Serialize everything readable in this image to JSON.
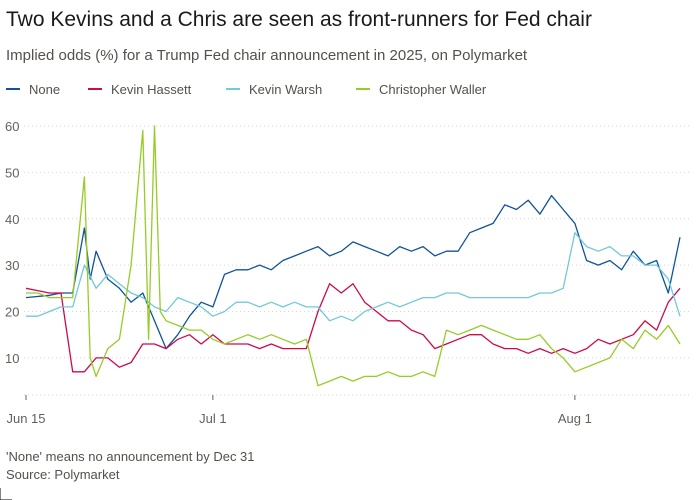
{
  "header": {
    "title": "Two Kevins and a Chris are seen as front-runners for Fed chair",
    "subtitle": "Implied odds (%) for a Trump Fed chair announcement in 2025, on Polymarket"
  },
  "footer": {
    "note": "'None' means no announcement by Dec 31",
    "source": "Source: Polymarket"
  },
  "chart_data": {
    "type": "line",
    "title": "Two Kevins and a Chris are seen as front-runners for Fed chair",
    "subtitle": "Implied odds (%) for a Trump Fed chair announcement in 2025, on Polymarket",
    "xlabel": "",
    "ylabel": "",
    "x_start": "2025-06-15",
    "x_end": "2025-08-10",
    "ylim": [
      2,
      60
    ],
    "yticks": [
      10,
      20,
      30,
      40,
      50,
      60
    ],
    "xticks": [
      {
        "date": "2025-06-15",
        "label": "Jun 15"
      },
      {
        "date": "2025-07-01",
        "label": "Jul 1"
      },
      {
        "date": "2025-08-01",
        "label": "Aug 1"
      }
    ],
    "grid": "horizontal dotted",
    "legend_position": "top",
    "series": [
      {
        "name": "None",
        "color": "#0f5499",
        "points": [
          [
            "2025-06-15",
            23
          ],
          [
            "2025-06-17",
            23.5
          ],
          [
            "2025-06-18",
            24
          ],
          [
            "2025-06-19",
            24
          ],
          [
            "2025-06-20",
            38
          ],
          [
            "2025-06-20T12",
            27
          ],
          [
            "2025-06-21",
            33
          ],
          [
            "2025-06-22",
            27
          ],
          [
            "2025-06-23",
            25
          ],
          [
            "2025-06-24",
            22
          ],
          [
            "2025-06-25",
            24
          ],
          [
            "2025-06-26",
            18
          ],
          [
            "2025-06-27",
            12
          ],
          [
            "2025-06-28",
            15
          ],
          [
            "2025-06-29",
            19
          ],
          [
            "2025-06-30",
            22
          ],
          [
            "2025-07-01",
            21
          ],
          [
            "2025-07-02",
            28
          ],
          [
            "2025-07-03",
            29
          ],
          [
            "2025-07-04",
            29
          ],
          [
            "2025-07-05",
            30
          ],
          [
            "2025-07-06",
            29
          ],
          [
            "2025-07-07",
            31
          ],
          [
            "2025-07-08",
            32
          ],
          [
            "2025-07-09",
            33
          ],
          [
            "2025-07-10",
            34
          ],
          [
            "2025-07-11",
            32
          ],
          [
            "2025-07-12",
            33
          ],
          [
            "2025-07-13",
            35
          ],
          [
            "2025-07-14",
            34
          ],
          [
            "2025-07-15",
            33
          ],
          [
            "2025-07-16",
            32
          ],
          [
            "2025-07-17",
            34
          ],
          [
            "2025-07-18",
            33
          ],
          [
            "2025-07-19",
            34
          ],
          [
            "2025-07-20",
            32
          ],
          [
            "2025-07-21",
            33
          ],
          [
            "2025-07-22",
            33
          ],
          [
            "2025-07-23",
            37
          ],
          [
            "2025-07-24",
            38
          ],
          [
            "2025-07-25",
            39
          ],
          [
            "2025-07-26",
            43
          ],
          [
            "2025-07-27",
            42
          ],
          [
            "2025-07-28",
            44
          ],
          [
            "2025-07-29",
            41
          ],
          [
            "2025-07-30",
            45
          ],
          [
            "2025-07-31",
            42
          ],
          [
            "2025-08-01",
            39
          ],
          [
            "2025-08-02",
            31
          ],
          [
            "2025-08-03",
            30
          ],
          [
            "2025-08-04",
            31
          ],
          [
            "2025-08-05",
            29
          ],
          [
            "2025-08-06",
            33
          ],
          [
            "2025-08-07",
            30
          ],
          [
            "2025-08-08",
            31
          ],
          [
            "2025-08-09",
            24
          ],
          [
            "2025-08-10",
            36
          ]
        ]
      },
      {
        "name": "Kevin Hassett",
        "color": "#cc0a4d",
        "points": [
          [
            "2025-06-15",
            25
          ],
          [
            "2025-06-16",
            24.5
          ],
          [
            "2025-06-17",
            24
          ],
          [
            "2025-06-18",
            24
          ],
          [
            "2025-06-19",
            7
          ],
          [
            "2025-06-20",
            7
          ],
          [
            "2025-06-21",
            10
          ],
          [
            "2025-06-22",
            10
          ],
          [
            "2025-06-23",
            8
          ],
          [
            "2025-06-24",
            9
          ],
          [
            "2025-06-25",
            13
          ],
          [
            "2025-06-26",
            13
          ],
          [
            "2025-06-27",
            12
          ],
          [
            "2025-06-28",
            14
          ],
          [
            "2025-06-29",
            15
          ],
          [
            "2025-06-30",
            13
          ],
          [
            "2025-07-01",
            15
          ],
          [
            "2025-07-02",
            13
          ],
          [
            "2025-07-03",
            13
          ],
          [
            "2025-07-04",
            13
          ],
          [
            "2025-07-05",
            12
          ],
          [
            "2025-07-06",
            13
          ],
          [
            "2025-07-07",
            12
          ],
          [
            "2025-07-08",
            12
          ],
          [
            "2025-07-09",
            12
          ],
          [
            "2025-07-10",
            20
          ],
          [
            "2025-07-11",
            26
          ],
          [
            "2025-07-12",
            24
          ],
          [
            "2025-07-13",
            26
          ],
          [
            "2025-07-14",
            22
          ],
          [
            "2025-07-15",
            20
          ],
          [
            "2025-07-16",
            18
          ],
          [
            "2025-07-17",
            18
          ],
          [
            "2025-07-18",
            16
          ],
          [
            "2025-07-19",
            15
          ],
          [
            "2025-07-20",
            12
          ],
          [
            "2025-07-21",
            13
          ],
          [
            "2025-07-22",
            14
          ],
          [
            "2025-07-23",
            15
          ],
          [
            "2025-07-24",
            15
          ],
          [
            "2025-07-25",
            13
          ],
          [
            "2025-07-26",
            12
          ],
          [
            "2025-07-27",
            12
          ],
          [
            "2025-07-28",
            11
          ],
          [
            "2025-07-29",
            12
          ],
          [
            "2025-07-30",
            11
          ],
          [
            "2025-07-31",
            12
          ],
          [
            "2025-08-01",
            11
          ],
          [
            "2025-08-02",
            12
          ],
          [
            "2025-08-03",
            14
          ],
          [
            "2025-08-04",
            13
          ],
          [
            "2025-08-05",
            14
          ],
          [
            "2025-08-06",
            15
          ],
          [
            "2025-08-07",
            18
          ],
          [
            "2025-08-08",
            16
          ],
          [
            "2025-08-09",
            22
          ],
          [
            "2025-08-10",
            25
          ]
        ]
      },
      {
        "name": "Kevin Warsh",
        "color": "#71c9d9",
        "points": [
          [
            "2025-06-15",
            19
          ],
          [
            "2025-06-16",
            19
          ],
          [
            "2025-06-17",
            20
          ],
          [
            "2025-06-18",
            21
          ],
          [
            "2025-06-19",
            21
          ],
          [
            "2025-06-20",
            30
          ],
          [
            "2025-06-21",
            25
          ],
          [
            "2025-06-22",
            28
          ],
          [
            "2025-06-23",
            26
          ],
          [
            "2025-06-24",
            24
          ],
          [
            "2025-06-25",
            23
          ],
          [
            "2025-06-26",
            21
          ],
          [
            "2025-06-27",
            20
          ],
          [
            "2025-06-28",
            23
          ],
          [
            "2025-06-29",
            22
          ],
          [
            "2025-06-30",
            21
          ],
          [
            "2025-07-01",
            19
          ],
          [
            "2025-07-02",
            20
          ],
          [
            "2025-07-03",
            22
          ],
          [
            "2025-07-04",
            22
          ],
          [
            "2025-07-05",
            21
          ],
          [
            "2025-07-06",
            22
          ],
          [
            "2025-07-07",
            21
          ],
          [
            "2025-07-08",
            22
          ],
          [
            "2025-07-09",
            21
          ],
          [
            "2025-07-10",
            21
          ],
          [
            "2025-07-11",
            18
          ],
          [
            "2025-07-12",
            19
          ],
          [
            "2025-07-13",
            18
          ],
          [
            "2025-07-14",
            20
          ],
          [
            "2025-07-15",
            21
          ],
          [
            "2025-07-16",
            22
          ],
          [
            "2025-07-17",
            21
          ],
          [
            "2025-07-18",
            22
          ],
          [
            "2025-07-19",
            23
          ],
          [
            "2025-07-20",
            23
          ],
          [
            "2025-07-21",
            24
          ],
          [
            "2025-07-22",
            24
          ],
          [
            "2025-07-23",
            23
          ],
          [
            "2025-07-24",
            23
          ],
          [
            "2025-07-25",
            23
          ],
          [
            "2025-07-26",
            23
          ],
          [
            "2025-07-27",
            23
          ],
          [
            "2025-07-28",
            23
          ],
          [
            "2025-07-29",
            24
          ],
          [
            "2025-07-30",
            24
          ],
          [
            "2025-07-31",
            25
          ],
          [
            "2025-08-01",
            37
          ],
          [
            "2025-08-02",
            34
          ],
          [
            "2025-08-03",
            33
          ],
          [
            "2025-08-04",
            34
          ],
          [
            "2025-08-05",
            32
          ],
          [
            "2025-08-06",
            32
          ],
          [
            "2025-08-07",
            30
          ],
          [
            "2025-08-08",
            30
          ],
          [
            "2025-08-09",
            27
          ],
          [
            "2025-08-10",
            19
          ]
        ]
      },
      {
        "name": "Christopher Waller",
        "color": "#96cc28",
        "points": [
          [
            "2025-06-15",
            24
          ],
          [
            "2025-06-16",
            24
          ],
          [
            "2025-06-17",
            23
          ],
          [
            "2025-06-18",
            23
          ],
          [
            "2025-06-19",
            23
          ],
          [
            "2025-06-20",
            49
          ],
          [
            "2025-06-20T12",
            10
          ],
          [
            "2025-06-21",
            6
          ],
          [
            "2025-06-22",
            12
          ],
          [
            "2025-06-23",
            14
          ],
          [
            "2025-06-24",
            30
          ],
          [
            "2025-06-25",
            59
          ],
          [
            "2025-06-25T12",
            14
          ],
          [
            "2025-06-26",
            60
          ],
          [
            "2025-06-26T12",
            20
          ],
          [
            "2025-06-27",
            18
          ],
          [
            "2025-06-28",
            17
          ],
          [
            "2025-06-29",
            16
          ],
          [
            "2025-06-30",
            16
          ],
          [
            "2025-07-01",
            14
          ],
          [
            "2025-07-02",
            13
          ],
          [
            "2025-07-03",
            14
          ],
          [
            "2025-07-04",
            15
          ],
          [
            "2025-07-05",
            14
          ],
          [
            "2025-07-06",
            15
          ],
          [
            "2025-07-07",
            14
          ],
          [
            "2025-07-08",
            13
          ],
          [
            "2025-07-09",
            14
          ],
          [
            "2025-07-10",
            4
          ],
          [
            "2025-07-11",
            5
          ],
          [
            "2025-07-12",
            6
          ],
          [
            "2025-07-13",
            5
          ],
          [
            "2025-07-14",
            6
          ],
          [
            "2025-07-15",
            6
          ],
          [
            "2025-07-16",
            7
          ],
          [
            "2025-07-17",
            6
          ],
          [
            "2025-07-18",
            6
          ],
          [
            "2025-07-19",
            7
          ],
          [
            "2025-07-20",
            6
          ],
          [
            "2025-07-21",
            16
          ],
          [
            "2025-07-22",
            15
          ],
          [
            "2025-07-23",
            16
          ],
          [
            "2025-07-24",
            17
          ],
          [
            "2025-07-25",
            16
          ],
          [
            "2025-07-26",
            15
          ],
          [
            "2025-07-27",
            14
          ],
          [
            "2025-07-28",
            14
          ],
          [
            "2025-07-29",
            15
          ],
          [
            "2025-07-30",
            12
          ],
          [
            "2025-07-31",
            10
          ],
          [
            "2025-08-01",
            7
          ],
          [
            "2025-08-02",
            8
          ],
          [
            "2025-08-03",
            9
          ],
          [
            "2025-08-04",
            10
          ],
          [
            "2025-08-05",
            14
          ],
          [
            "2025-08-06",
            12
          ],
          [
            "2025-08-07",
            16
          ],
          [
            "2025-08-08",
            14
          ],
          [
            "2025-08-09",
            17
          ],
          [
            "2025-08-10",
            13
          ]
        ]
      }
    ]
  }
}
